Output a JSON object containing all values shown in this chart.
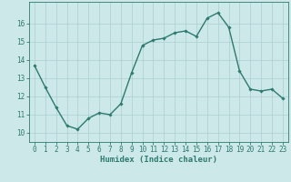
{
  "x": [
    0,
    1,
    2,
    3,
    4,
    5,
    6,
    7,
    8,
    9,
    10,
    11,
    12,
    13,
    14,
    15,
    16,
    17,
    18,
    19,
    20,
    21,
    22,
    23
  ],
  "y": [
    13.7,
    12.5,
    11.4,
    10.4,
    10.2,
    10.8,
    11.1,
    11.0,
    11.6,
    13.3,
    14.8,
    15.1,
    15.2,
    15.5,
    15.6,
    15.3,
    16.3,
    16.6,
    15.8,
    13.4,
    12.4,
    12.3,
    12.4,
    11.9
  ],
  "line_color": "#2d7a6e",
  "marker": "D",
  "marker_size": 1.8,
  "line_width": 1.0,
  "bg_color": "#cce8e8",
  "grid_color": "#aacfcf",
  "xlabel": "Humidex (Indice chaleur)",
  "xlabel_fontsize": 6.5,
  "tick_fontsize": 5.5,
  "ylim": [
    9.5,
    17.2
  ],
  "yticks": [
    10,
    11,
    12,
    13,
    14,
    15,
    16
  ],
  "xlim": [
    -0.5,
    23.5
  ],
  "xticks": [
    0,
    1,
    2,
    3,
    4,
    5,
    6,
    7,
    8,
    9,
    10,
    11,
    12,
    13,
    14,
    15,
    16,
    17,
    18,
    19,
    20,
    21,
    22,
    23
  ]
}
